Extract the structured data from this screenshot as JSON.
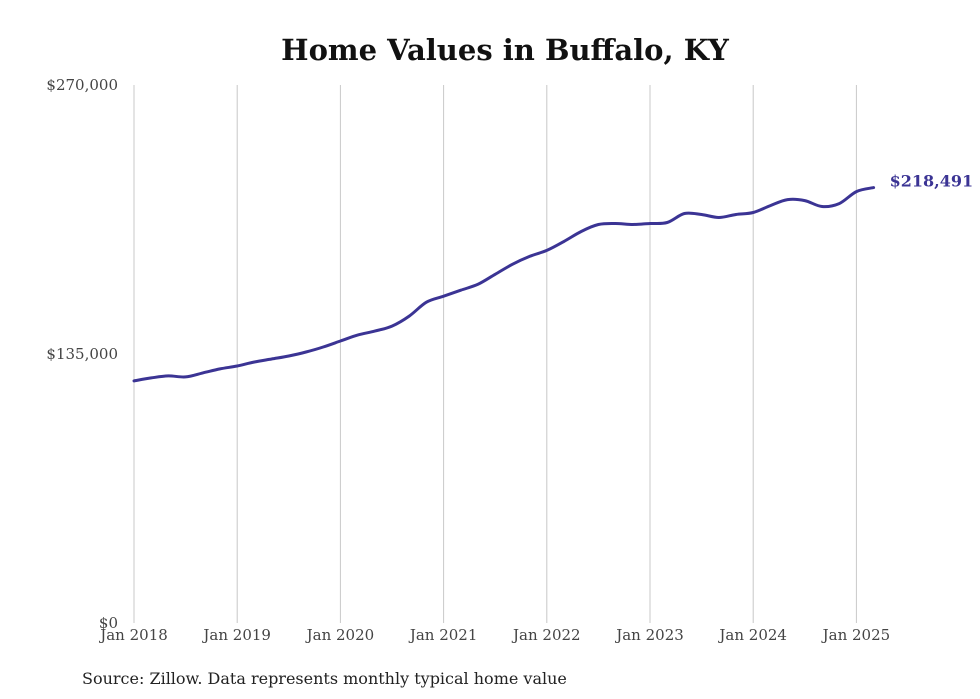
{
  "chart_data": {
    "type": "line",
    "title": "Home Values in Buffalo, KY",
    "source": "Source: Zillow. Data represents monthly typical home value",
    "xlabel": "",
    "ylabel": "",
    "ylim": [
      0,
      270000
    ],
    "yticks": [
      0,
      135000,
      270000
    ],
    "ytick_labels": [
      "$0",
      "$135,000",
      "$270,000"
    ],
    "xlim": [
      "2018-01",
      "2025-03"
    ],
    "xticks": [
      "2018-01",
      "2019-01",
      "2020-01",
      "2021-01",
      "2022-01",
      "2023-01",
      "2024-01",
      "2025-01"
    ],
    "xtick_labels": [
      "Jan 2018",
      "Jan 2019",
      "Jan 2020",
      "Jan 2021",
      "Jan 2022",
      "Jan 2023",
      "Jan 2024",
      "Jan 2025"
    ],
    "grid": "vertical",
    "line_color": "#3b3494",
    "end_label": "$218,491",
    "series": [
      {
        "x": [
          "2018-01",
          "2018-03",
          "2018-05",
          "2018-07",
          "2018-09",
          "2018-11",
          "2019-01",
          "2019-03",
          "2019-05",
          "2019-07",
          "2019-09",
          "2019-11",
          "2020-01",
          "2020-03",
          "2020-05",
          "2020-07",
          "2020-09",
          "2020-11",
          "2021-01",
          "2021-03",
          "2021-05",
          "2021-07",
          "2021-09",
          "2021-11",
          "2022-01",
          "2022-03",
          "2022-05",
          "2022-07",
          "2022-09",
          "2022-11",
          "2023-01",
          "2023-03",
          "2023-05",
          "2023-07",
          "2023-09",
          "2023-11",
          "2024-01",
          "2024-03",
          "2024-05",
          "2024-07",
          "2024-09",
          "2024-11",
          "2025-01",
          "2025-03"
        ],
        "values": [
          121500,
          123000,
          124000,
          123500,
          125500,
          127500,
          129000,
          131000,
          132500,
          134000,
          136000,
          138500,
          141500,
          144500,
          146500,
          149000,
          154000,
          161000,
          164000,
          167000,
          170000,
          175000,
          180000,
          184000,
          187000,
          191500,
          196500,
          200000,
          200500,
          200000,
          200500,
          201000,
          205500,
          205000,
          203500,
          205000,
          206000,
          209500,
          212500,
          212000,
          209000,
          210500,
          216500,
          218491
        ]
      }
    ]
  }
}
